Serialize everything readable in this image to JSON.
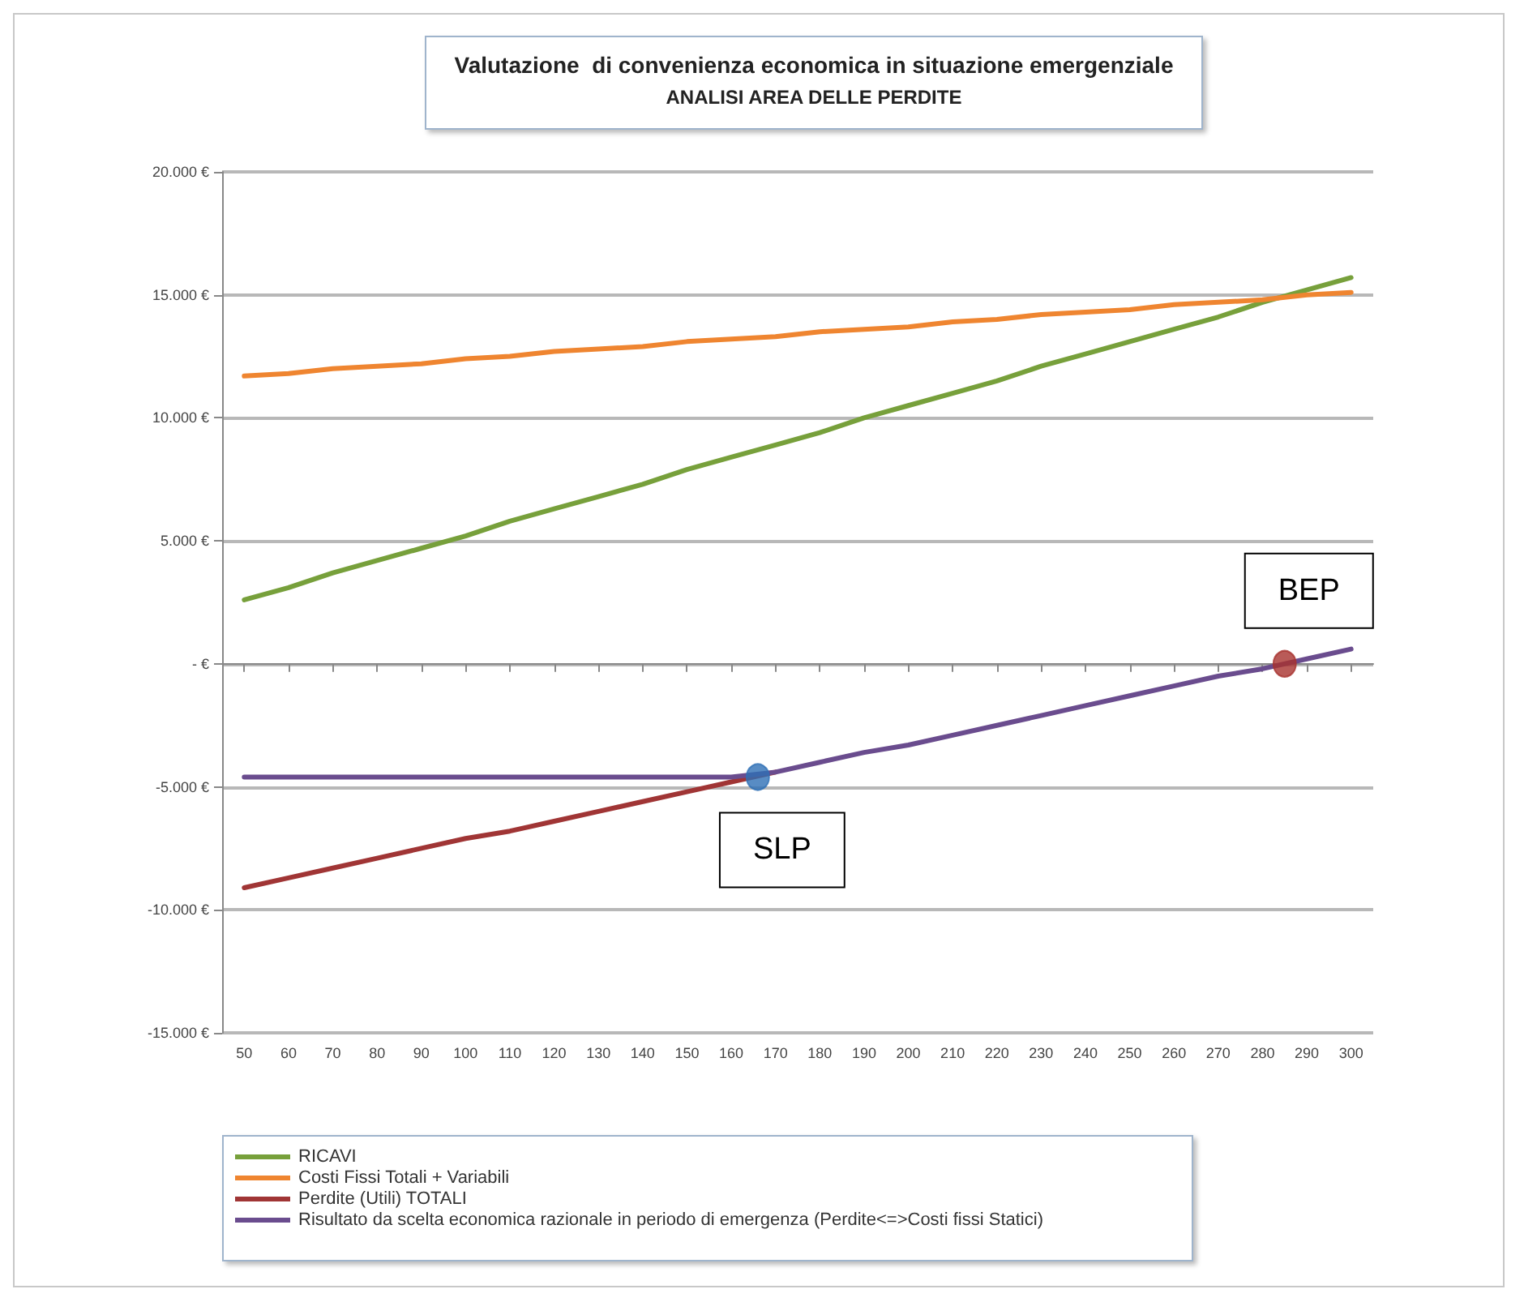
{
  "chart_data": {
    "type": "line",
    "title": "Valutazione  di convenienza economica in situazione emergenziale",
    "subtitle": "ANALISI AREA DELLE PERDITE",
    "x": [
      50,
      60,
      70,
      80,
      90,
      100,
      110,
      120,
      130,
      140,
      150,
      160,
      170,
      180,
      190,
      200,
      210,
      220,
      230,
      240,
      250,
      260,
      270,
      280,
      290,
      300
    ],
    "xlim": [
      45,
      305
    ],
    "xticks": [
      50,
      60,
      70,
      80,
      90,
      100,
      110,
      120,
      130,
      140,
      150,
      160,
      170,
      180,
      190,
      200,
      210,
      220,
      230,
      240,
      250,
      260,
      270,
      280,
      290,
      300
    ],
    "ylim": [
      -15000,
      20000
    ],
    "yticks": [
      {
        "value": -15000,
        "label": "-15.000 €"
      },
      {
        "value": -10000,
        "label": "-10.000 €"
      },
      {
        "value": -5000,
        "label": "-5.000 €"
      },
      {
        "value": 0,
        "label": "- €"
      },
      {
        "value": 5000,
        "label": "5.000 €"
      },
      {
        "value": 10000,
        "label": "10.000 €"
      },
      {
        "value": 15000,
        "label": "15.000 €"
      },
      {
        "value": 20000,
        "label": "20.000 €"
      }
    ],
    "grid": "y",
    "legend": "bottom",
    "marker": "none",
    "line_style": "solid",
    "series": [
      {
        "name": "RICAVI",
        "color": "#77a03b",
        "values": [
          2600,
          3100,
          3700,
          4200,
          4700,
          5200,
          5800,
          6300,
          6800,
          7300,
          7900,
          8400,
          8900,
          9400,
          10000,
          10500,
          11000,
          11500,
          12100,
          12600,
          13100,
          13600,
          14100,
          14700,
          15200,
          15700
        ]
      },
      {
        "name": "Costi Fissi Totali + Variabili",
        "color": "#ef8530",
        "values": [
          11700,
          11800,
          12000,
          12100,
          12200,
          12400,
          12500,
          12700,
          12800,
          12900,
          13100,
          13200,
          13300,
          13500,
          13600,
          13700,
          13900,
          14000,
          14200,
          14300,
          14400,
          14600,
          14700,
          14800,
          15000,
          15100
        ]
      },
      {
        "name": "Perdite (Utili) TOTALI",
        "color": "#a03535",
        "values": [
          -9100,
          -8700,
          -8300,
          -7900,
          -7500,
          -7100,
          -6800,
          -6400,
          -6000,
          -5600,
          -5200,
          -4800,
          -4400,
          null,
          null,
          null,
          null,
          null,
          null,
          null,
          null,
          null,
          null,
          null,
          null,
          null
        ]
      },
      {
        "name": "Risultato da scelta economica razionale in periodo di emergenza (Perdite<=>Costi fissi Statici)",
        "color": "#6a4c8e",
        "values": [
          -4600,
          -4600,
          -4600,
          -4600,
          -4600,
          -4600,
          -4600,
          -4600,
          -4600,
          -4600,
          -4600,
          -4600,
          -4400,
          -4000,
          -3600,
          -3300,
          -2900,
          -2500,
          -2100,
          -1700,
          -1300,
          -900,
          -500,
          -200,
          200,
          600
        ]
      },
      {
        "type": "scatter",
        "marker": "circle",
        "color": "#2e6fb5",
        "x": [
          166
        ],
        "values": [
          -4600
        ]
      },
      {
        "type": "scatter",
        "marker": "circle",
        "color": "#a8322e",
        "x": [
          285
        ],
        "values": [
          0
        ]
      }
    ],
    "annotations": [
      {
        "text": "SLP",
        "x": 166,
        "y": -4600
      },
      {
        "text": "BEP",
        "x": 285,
        "y": 0
      }
    ]
  }
}
